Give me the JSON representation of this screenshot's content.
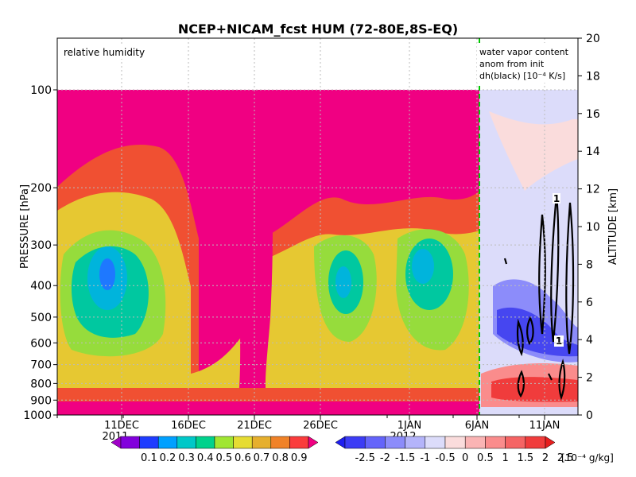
{
  "chart_data": {
    "type": "heatmap",
    "title": "NCEP+NICAM_fcst HUM (72-80E,8S-EQ)",
    "left_panel_label": "relative humidity",
    "right_panel_label_lines": [
      "water vapor content",
      "anom from init",
      "dh(black) [10⁻⁴ K/s]"
    ],
    "ylabel_left": "PRESSURE [hPa]",
    "ylabel_right": "ALTITUDE [km]",
    "y_left_ticks": [
      100,
      200,
      300,
      400,
      500,
      600,
      700,
      800,
      900,
      1000
    ],
    "y_left_range": [
      1000,
      100
    ],
    "y_right_ticks": [
      0,
      2,
      4,
      6,
      8,
      10,
      12,
      14,
      16,
      18,
      20
    ],
    "y_right_range": [
      0,
      20
    ],
    "x_ticks": [
      {
        "label": "11DEC",
        "year": "2011"
      },
      {
        "label": "16DEC",
        "year": ""
      },
      {
        "label": "21DEC",
        "year": ""
      },
      {
        "label": "26DEC",
        "year": ""
      },
      {
        "label": "1JAN",
        "year": "2012"
      },
      {
        "label": "6JAN",
        "year": ""
      },
      {
        "label": "11JAN",
        "year": ""
      }
    ],
    "grid": true,
    "forecast_start": "6JAN",
    "rh_colorbar": {
      "labels": [
        "0.1",
        "0.2",
        "0.3",
        "0.4",
        "0.5",
        "0.6",
        "0.7",
        "0.8",
        "0.9"
      ],
      "colors": [
        "#a000c8",
        "#8200dc",
        "#1e3cff",
        "#00a0ff",
        "#00c8c8",
        "#00d28c",
        "#a0e632",
        "#e6dc32",
        "#e6af2d",
        "#f08228",
        "#fa3c3c",
        "#f00082"
      ]
    },
    "anom_colorbar": {
      "labels": [
        "-2.5",
        "-2",
        "-1.5",
        "-1",
        "-0.5",
        "0",
        "0.5",
        "1",
        "1.5",
        "2",
        "2.5"
      ],
      "unit": "[10⁻⁴ g/kg]",
      "colors": [
        "#1e1ef0",
        "#3c3cf5",
        "#6464fa",
        "#8c8cfa",
        "#b4b4fa",
        "#dcdcfa",
        "#fadcdc",
        "#fab4b4",
        "#fa8c8c",
        "#f56464",
        "#f03c3c",
        "#e61e1e"
      ]
    },
    "contour_label": "1"
  }
}
